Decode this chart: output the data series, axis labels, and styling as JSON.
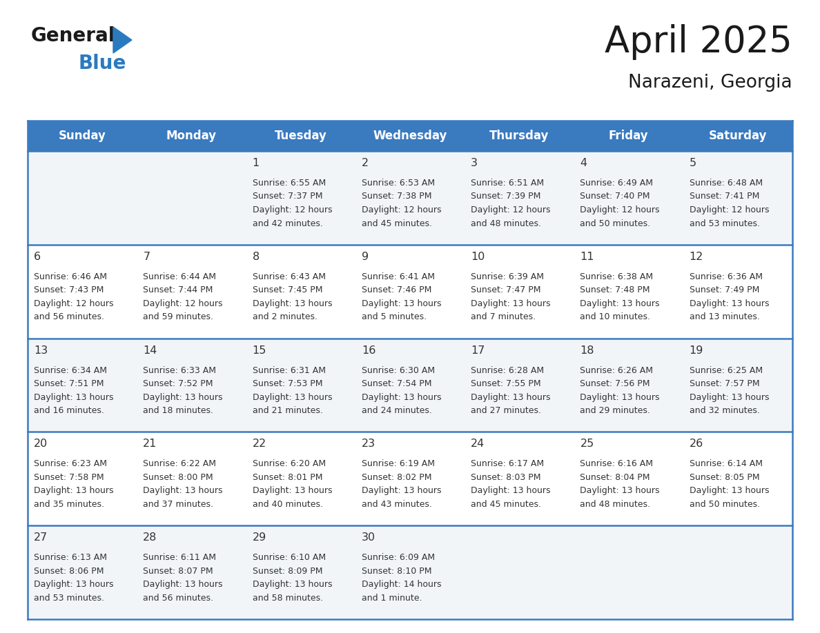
{
  "title": "April 2025",
  "subtitle": "Narazeni, Georgia",
  "header_bg_color": "#3a7abf",
  "header_text_color": "#ffffff",
  "cell_bg_odd": "#f2f5f8",
  "cell_bg_even": "#ffffff",
  "text_color": "#333333",
  "border_color": "#3a7abf",
  "day_names": [
    "Sunday",
    "Monday",
    "Tuesday",
    "Wednesday",
    "Thursday",
    "Friday",
    "Saturday"
  ],
  "days_data": [
    {
      "day": 1,
      "col": 2,
      "row": 0,
      "sunrise": "6:55 AM",
      "sunset": "7:37 PM",
      "daylight": "12 hours",
      "daylight2": "and 42 minutes."
    },
    {
      "day": 2,
      "col": 3,
      "row": 0,
      "sunrise": "6:53 AM",
      "sunset": "7:38 PM",
      "daylight": "12 hours",
      "daylight2": "and 45 minutes."
    },
    {
      "day": 3,
      "col": 4,
      "row": 0,
      "sunrise": "6:51 AM",
      "sunset": "7:39 PM",
      "daylight": "12 hours",
      "daylight2": "and 48 minutes."
    },
    {
      "day": 4,
      "col": 5,
      "row": 0,
      "sunrise": "6:49 AM",
      "sunset": "7:40 PM",
      "daylight": "12 hours",
      "daylight2": "and 50 minutes."
    },
    {
      "day": 5,
      "col": 6,
      "row": 0,
      "sunrise": "6:48 AM",
      "sunset": "7:41 PM",
      "daylight": "12 hours",
      "daylight2": "and 53 minutes."
    },
    {
      "day": 6,
      "col": 0,
      "row": 1,
      "sunrise": "6:46 AM",
      "sunset": "7:43 PM",
      "daylight": "12 hours",
      "daylight2": "and 56 minutes."
    },
    {
      "day": 7,
      "col": 1,
      "row": 1,
      "sunrise": "6:44 AM",
      "sunset": "7:44 PM",
      "daylight": "12 hours",
      "daylight2": "and 59 minutes."
    },
    {
      "day": 8,
      "col": 2,
      "row": 1,
      "sunrise": "6:43 AM",
      "sunset": "7:45 PM",
      "daylight": "13 hours",
      "daylight2": "and 2 minutes."
    },
    {
      "day": 9,
      "col": 3,
      "row": 1,
      "sunrise": "6:41 AM",
      "sunset": "7:46 PM",
      "daylight": "13 hours",
      "daylight2": "and 5 minutes."
    },
    {
      "day": 10,
      "col": 4,
      "row": 1,
      "sunrise": "6:39 AM",
      "sunset": "7:47 PM",
      "daylight": "13 hours",
      "daylight2": "and 7 minutes."
    },
    {
      "day": 11,
      "col": 5,
      "row": 1,
      "sunrise": "6:38 AM",
      "sunset": "7:48 PM",
      "daylight": "13 hours",
      "daylight2": "and 10 minutes."
    },
    {
      "day": 12,
      "col": 6,
      "row": 1,
      "sunrise": "6:36 AM",
      "sunset": "7:49 PM",
      "daylight": "13 hours",
      "daylight2": "and 13 minutes."
    },
    {
      "day": 13,
      "col": 0,
      "row": 2,
      "sunrise": "6:34 AM",
      "sunset": "7:51 PM",
      "daylight": "13 hours",
      "daylight2": "and 16 minutes."
    },
    {
      "day": 14,
      "col": 1,
      "row": 2,
      "sunrise": "6:33 AM",
      "sunset": "7:52 PM",
      "daylight": "13 hours",
      "daylight2": "and 18 minutes."
    },
    {
      "day": 15,
      "col": 2,
      "row": 2,
      "sunrise": "6:31 AM",
      "sunset": "7:53 PM",
      "daylight": "13 hours",
      "daylight2": "and 21 minutes."
    },
    {
      "day": 16,
      "col": 3,
      "row": 2,
      "sunrise": "6:30 AM",
      "sunset": "7:54 PM",
      "daylight": "13 hours",
      "daylight2": "and 24 minutes."
    },
    {
      "day": 17,
      "col": 4,
      "row": 2,
      "sunrise": "6:28 AM",
      "sunset": "7:55 PM",
      "daylight": "13 hours",
      "daylight2": "and 27 minutes."
    },
    {
      "day": 18,
      "col": 5,
      "row": 2,
      "sunrise": "6:26 AM",
      "sunset": "7:56 PM",
      "daylight": "13 hours",
      "daylight2": "and 29 minutes."
    },
    {
      "day": 19,
      "col": 6,
      "row": 2,
      "sunrise": "6:25 AM",
      "sunset": "7:57 PM",
      "daylight": "13 hours",
      "daylight2": "and 32 minutes."
    },
    {
      "day": 20,
      "col": 0,
      "row": 3,
      "sunrise": "6:23 AM",
      "sunset": "7:58 PM",
      "daylight": "13 hours",
      "daylight2": "and 35 minutes."
    },
    {
      "day": 21,
      "col": 1,
      "row": 3,
      "sunrise": "6:22 AM",
      "sunset": "8:00 PM",
      "daylight": "13 hours",
      "daylight2": "and 37 minutes."
    },
    {
      "day": 22,
      "col": 2,
      "row": 3,
      "sunrise": "6:20 AM",
      "sunset": "8:01 PM",
      "daylight": "13 hours",
      "daylight2": "and 40 minutes."
    },
    {
      "day": 23,
      "col": 3,
      "row": 3,
      "sunrise": "6:19 AM",
      "sunset": "8:02 PM",
      "daylight": "13 hours",
      "daylight2": "and 43 minutes."
    },
    {
      "day": 24,
      "col": 4,
      "row": 3,
      "sunrise": "6:17 AM",
      "sunset": "8:03 PM",
      "daylight": "13 hours",
      "daylight2": "and 45 minutes."
    },
    {
      "day": 25,
      "col": 5,
      "row": 3,
      "sunrise": "6:16 AM",
      "sunset": "8:04 PM",
      "daylight": "13 hours",
      "daylight2": "and 48 minutes."
    },
    {
      "day": 26,
      "col": 6,
      "row": 3,
      "sunrise": "6:14 AM",
      "sunset": "8:05 PM",
      "daylight": "13 hours",
      "daylight2": "and 50 minutes."
    },
    {
      "day": 27,
      "col": 0,
      "row": 4,
      "sunrise": "6:13 AM",
      "sunset": "8:06 PM",
      "daylight": "13 hours",
      "daylight2": "and 53 minutes."
    },
    {
      "day": 28,
      "col": 1,
      "row": 4,
      "sunrise": "6:11 AM",
      "sunset": "8:07 PM",
      "daylight": "13 hours",
      "daylight2": "and 56 minutes."
    },
    {
      "day": 29,
      "col": 2,
      "row": 4,
      "sunrise": "6:10 AM",
      "sunset": "8:09 PM",
      "daylight": "13 hours",
      "daylight2": "and 58 minutes."
    },
    {
      "day": 30,
      "col": 3,
      "row": 4,
      "sunrise": "6:09 AM",
      "sunset": "8:10 PM",
      "daylight": "14 hours",
      "daylight2": "and 1 minute."
    }
  ],
  "logo_color_general": "#1a1a1a",
  "logo_color_blue": "#2b7abf",
  "logo_triangle_color": "#2b7abf",
  "figsize": [
    11.88,
    9.18
  ],
  "dpi": 100
}
